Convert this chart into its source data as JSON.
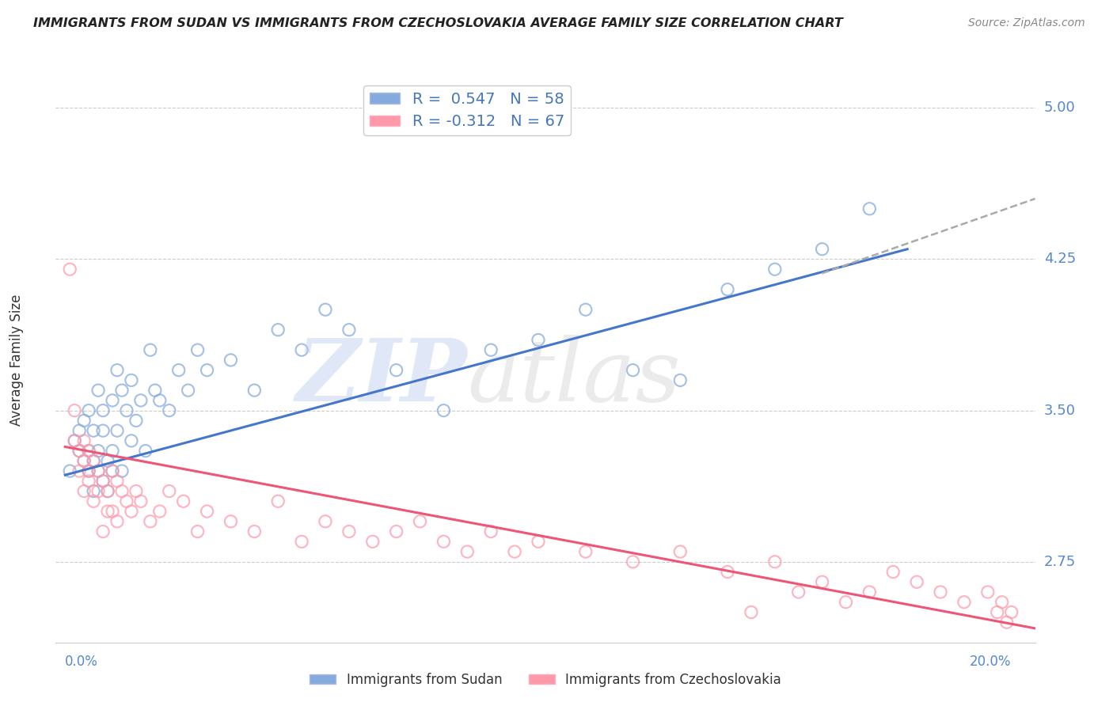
{
  "title": "IMMIGRANTS FROM SUDAN VS IMMIGRANTS FROM CZECHOSLOVAKIA AVERAGE FAMILY SIZE CORRELATION CHART",
  "source": "Source: ZipAtlas.com",
  "ylabel": "Average Family Size",
  "yticks": [
    2.75,
    3.5,
    4.25,
    5.0
  ],
  "ylim": [
    2.35,
    5.15
  ],
  "xlim": [
    -0.002,
    0.205
  ],
  "legend_blue_label": "R =  0.547   N = 58",
  "legend_pink_label": "R = -0.312   N = 67",
  "sudan_color": "#85AADD",
  "czech_color": "#FF99AA",
  "trend_blue": "#4477CC",
  "trend_pink": "#EE5577",
  "trend_dash_color": "#AAAAAA",
  "background_color": "#FFFFFF",
  "sudan_scatter_x": [
    0.001,
    0.002,
    0.003,
    0.003,
    0.004,
    0.004,
    0.005,
    0.005,
    0.005,
    0.006,
    0.006,
    0.006,
    0.007,
    0.007,
    0.007,
    0.008,
    0.008,
    0.008,
    0.009,
    0.009,
    0.01,
    0.01,
    0.01,
    0.011,
    0.011,
    0.012,
    0.012,
    0.013,
    0.014,
    0.014,
    0.015,
    0.016,
    0.017,
    0.018,
    0.019,
    0.02,
    0.022,
    0.024,
    0.026,
    0.028,
    0.03,
    0.035,
    0.04,
    0.045,
    0.05,
    0.055,
    0.06,
    0.07,
    0.08,
    0.09,
    0.1,
    0.11,
    0.12,
    0.13,
    0.14,
    0.15,
    0.16,
    0.17
  ],
  "sudan_scatter_y": [
    3.2,
    3.35,
    3.3,
    3.4,
    3.25,
    3.45,
    3.3,
    3.2,
    3.5,
    3.25,
    3.4,
    3.1,
    3.3,
    3.6,
    3.2,
    3.5,
    3.15,
    3.4,
    3.1,
    3.25,
    3.2,
    3.55,
    3.3,
    3.7,
    3.4,
    3.6,
    3.2,
    3.5,
    3.35,
    3.65,
    3.45,
    3.55,
    3.3,
    3.8,
    3.6,
    3.55,
    3.5,
    3.7,
    3.6,
    3.8,
    3.7,
    3.75,
    3.6,
    3.9,
    3.8,
    4.0,
    3.9,
    3.7,
    3.5,
    3.8,
    3.85,
    4.0,
    3.7,
    3.65,
    4.1,
    4.2,
    4.3,
    4.5
  ],
  "czech_scatter_x": [
    0.001,
    0.002,
    0.002,
    0.003,
    0.003,
    0.004,
    0.004,
    0.004,
    0.005,
    0.005,
    0.005,
    0.006,
    0.006,
    0.007,
    0.007,
    0.008,
    0.008,
    0.009,
    0.009,
    0.01,
    0.01,
    0.011,
    0.011,
    0.012,
    0.013,
    0.014,
    0.015,
    0.016,
    0.018,
    0.02,
    0.022,
    0.025,
    0.028,
    0.03,
    0.035,
    0.04,
    0.045,
    0.05,
    0.055,
    0.06,
    0.065,
    0.07,
    0.075,
    0.08,
    0.085,
    0.09,
    0.095,
    0.1,
    0.11,
    0.12,
    0.13,
    0.14,
    0.15,
    0.16,
    0.17,
    0.175,
    0.18,
    0.185,
    0.19,
    0.195,
    0.197,
    0.198,
    0.199,
    0.2,
    0.155,
    0.165,
    0.145
  ],
  "czech_scatter_y": [
    4.2,
    3.35,
    3.5,
    3.3,
    3.2,
    3.25,
    3.1,
    3.35,
    3.3,
    3.2,
    3.15,
    3.25,
    3.05,
    3.2,
    3.1,
    3.15,
    2.9,
    3.0,
    3.1,
    3.2,
    3.0,
    3.15,
    2.95,
    3.1,
    3.05,
    3.0,
    3.1,
    3.05,
    2.95,
    3.0,
    3.1,
    3.05,
    2.9,
    3.0,
    2.95,
    2.9,
    3.05,
    2.85,
    2.95,
    2.9,
    2.85,
    2.9,
    2.95,
    2.85,
    2.8,
    2.9,
    2.8,
    2.85,
    2.8,
    2.75,
    2.8,
    2.7,
    2.75,
    2.65,
    2.6,
    2.7,
    2.65,
    2.6,
    2.55,
    2.6,
    2.5,
    2.55,
    2.45,
    2.5,
    2.6,
    2.55,
    2.5
  ],
  "blue_trend_x": [
    0.0,
    0.178
  ],
  "blue_trend_y": [
    3.18,
    4.3
  ],
  "dash_trend_x": [
    0.16,
    0.205
  ],
  "dash_trend_y": [
    4.18,
    4.55
  ],
  "pink_trend_x": [
    0.0,
    0.205
  ],
  "pink_trend_y": [
    3.32,
    2.42
  ],
  "bottom_legend_labels": [
    "Immigrants from Sudan",
    "Immigrants from Czechoslovakia"
  ]
}
